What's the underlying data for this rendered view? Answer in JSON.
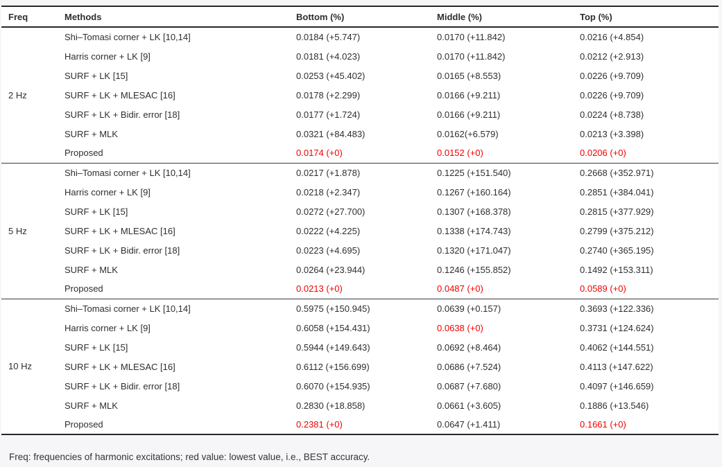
{
  "colors": {
    "page_background": "#f6f6f8",
    "table_background": "#ffffff",
    "text": "#2e2e2e",
    "border": "#262626",
    "best_value_red": "#f20000"
  },
  "table": {
    "headers": [
      "Freq",
      "Methods",
      "Bottom (%)",
      "Middle (%)",
      "Top (%)"
    ],
    "groups": [
      {
        "freq": "2 Hz",
        "rows": [
          {
            "method": "Shi–Tomasi corner + LK [10,14]",
            "bottom": {
              "value": "0.0184 (+5.747)",
              "red": false
            },
            "middle": {
              "value": "0.0170 (+11.842)",
              "red": false
            },
            "top": {
              "value": "0.0216 (+4.854)",
              "red": false
            }
          },
          {
            "method": "Harris corner + LK [9]",
            "bottom": {
              "value": "0.0181 (+4.023)",
              "red": false
            },
            "middle": {
              "value": "0.0170 (+11.842)",
              "red": false
            },
            "top": {
              "value": "0.0212 (+2.913)",
              "red": false
            }
          },
          {
            "method": "SURF + LK [15]",
            "bottom": {
              "value": "0.0253 (+45.402)",
              "red": false
            },
            "middle": {
              "value": "0.0165 (+8.553)",
              "red": false
            },
            "top": {
              "value": "0.0226 (+9.709)",
              "red": false
            }
          },
          {
            "method": "SURF + LK + MLESAC [16]",
            "bottom": {
              "value": "0.0178 (+2.299)",
              "red": false
            },
            "middle": {
              "value": "0.0166 (+9.211)",
              "red": false
            },
            "top": {
              "value": "0.0226 (+9.709)",
              "red": false
            }
          },
          {
            "method": "SURF + LK + Bidir. error [18]",
            "bottom": {
              "value": "0.0177 (+1.724)",
              "red": false
            },
            "middle": {
              "value": "0.0166 (+9.211)",
              "red": false
            },
            "top": {
              "value": "0.0224 (+8.738)",
              "red": false
            }
          },
          {
            "method": "SURF + MLK",
            "bottom": {
              "value": "0.0321 (+84.483)",
              "red": false
            },
            "middle": {
              "value": "0.0162(+6.579)",
              "red": false
            },
            "top": {
              "value": "0.0213 (+3.398)",
              "red": false
            }
          },
          {
            "method": "Proposed",
            "bottom": {
              "value": "0.0174 (+0)",
              "red": true
            },
            "middle": {
              "value": "0.0152 (+0)",
              "red": true
            },
            "top": {
              "value": "0.0206 (+0)",
              "red": true
            }
          }
        ]
      },
      {
        "freq": "5 Hz",
        "rows": [
          {
            "method": "Shi–Tomasi corner + LK [10,14]",
            "bottom": {
              "value": "0.0217 (+1.878)",
              "red": false
            },
            "middle": {
              "value": "0.1225 (+151.540)",
              "red": false
            },
            "top": {
              "value": "0.2668 (+352.971)",
              "red": false
            }
          },
          {
            "method": "Harris corner + LK [9]",
            "bottom": {
              "value": "0.0218 (+2.347)",
              "red": false
            },
            "middle": {
              "value": "0.1267 (+160.164)",
              "red": false
            },
            "top": {
              "value": "0.2851 (+384.041)",
              "red": false
            }
          },
          {
            "method": "SURF + LK [15]",
            "bottom": {
              "value": "0.0272 (+27.700)",
              "red": false
            },
            "middle": {
              "value": "0.1307 (+168.378)",
              "red": false
            },
            "top": {
              "value": "0.2815 (+377.929)",
              "red": false
            }
          },
          {
            "method": "SURF + LK + MLESAC [16]",
            "bottom": {
              "value": "0.0222 (+4.225)",
              "red": false
            },
            "middle": {
              "value": "0.1338 (+174.743)",
              "red": false
            },
            "top": {
              "value": "0.2799 (+375.212)",
              "red": false
            }
          },
          {
            "method": "SURF + LK + Bidir. error [18]",
            "bottom": {
              "value": "0.0223 (+4.695)",
              "red": false
            },
            "middle": {
              "value": "0.1320 (+171.047)",
              "red": false
            },
            "top": {
              "value": "0.2740 (+365.195)",
              "red": false
            }
          },
          {
            "method": "SURF + MLK",
            "bottom": {
              "value": "0.0264 (+23.944)",
              "red": false
            },
            "middle": {
              "value": "0.1246 (+155.852)",
              "red": false
            },
            "top": {
              "value": "0.1492 (+153.311)",
              "red": false
            }
          },
          {
            "method": "Proposed",
            "bottom": {
              "value": "0.0213 (+0)",
              "red": true
            },
            "middle": {
              "value": "0.0487 (+0)",
              "red": true
            },
            "top": {
              "value": "0.0589 (+0)",
              "red": true
            }
          }
        ]
      },
      {
        "freq": "10 Hz",
        "rows": [
          {
            "method": "Shi–Tomasi corner + LK [10,14]",
            "bottom": {
              "value": "0.5975 (+150.945)",
              "red": false
            },
            "middle": {
              "value": "0.0639 (+0.157)",
              "red": false
            },
            "top": {
              "value": "0.3693 (+122.336)",
              "red": false
            }
          },
          {
            "method": "Harris corner + LK [9]",
            "bottom": {
              "value": "0.6058 (+154.431)",
              "red": false
            },
            "middle": {
              "value": "0.0638 (+0)",
              "red": true
            },
            "top": {
              "value": "0.3731 (+124.624)",
              "red": false
            }
          },
          {
            "method": "SURF + LK [15]",
            "bottom": {
              "value": "0.5944 (+149.643)",
              "red": false
            },
            "middle": {
              "value": "0.0692 (+8.464)",
              "red": false
            },
            "top": {
              "value": "0.4062 (+144.551)",
              "red": false
            }
          },
          {
            "method": "SURF + LK + MLESAC [16]",
            "bottom": {
              "value": "0.6112 (+156.699)",
              "red": false
            },
            "middle": {
              "value": "0.0686 (+7.524)",
              "red": false
            },
            "top": {
              "value": "0.4113 (+147.622)",
              "red": false
            }
          },
          {
            "method": "SURF + LK + Bidir. error [18]",
            "bottom": {
              "value": "0.6070 (+154.935)",
              "red": false
            },
            "middle": {
              "value": "0.0687 (+7.680)",
              "red": false
            },
            "top": {
              "value": "0.4097 (+146.659)",
              "red": false
            }
          },
          {
            "method": "SURF + MLK",
            "bottom": {
              "value": "0.2830 (+18.858)",
              "red": false
            },
            "middle": {
              "value": "0.0661 (+3.605)",
              "red": false
            },
            "top": {
              "value": "0.1886 (+13.546)",
              "red": false
            }
          },
          {
            "method": "Proposed",
            "bottom": {
              "value": "0.2381 (+0)",
              "red": true
            },
            "middle": {
              "value": "0.0647 (+1.411)",
              "red": false
            },
            "top": {
              "value": "0.1661 (+0)",
              "red": true
            }
          }
        ]
      }
    ]
  },
  "footnote": "Freq: frequencies of harmonic excitations; red value: lowest value, i.e., BEST accuracy."
}
